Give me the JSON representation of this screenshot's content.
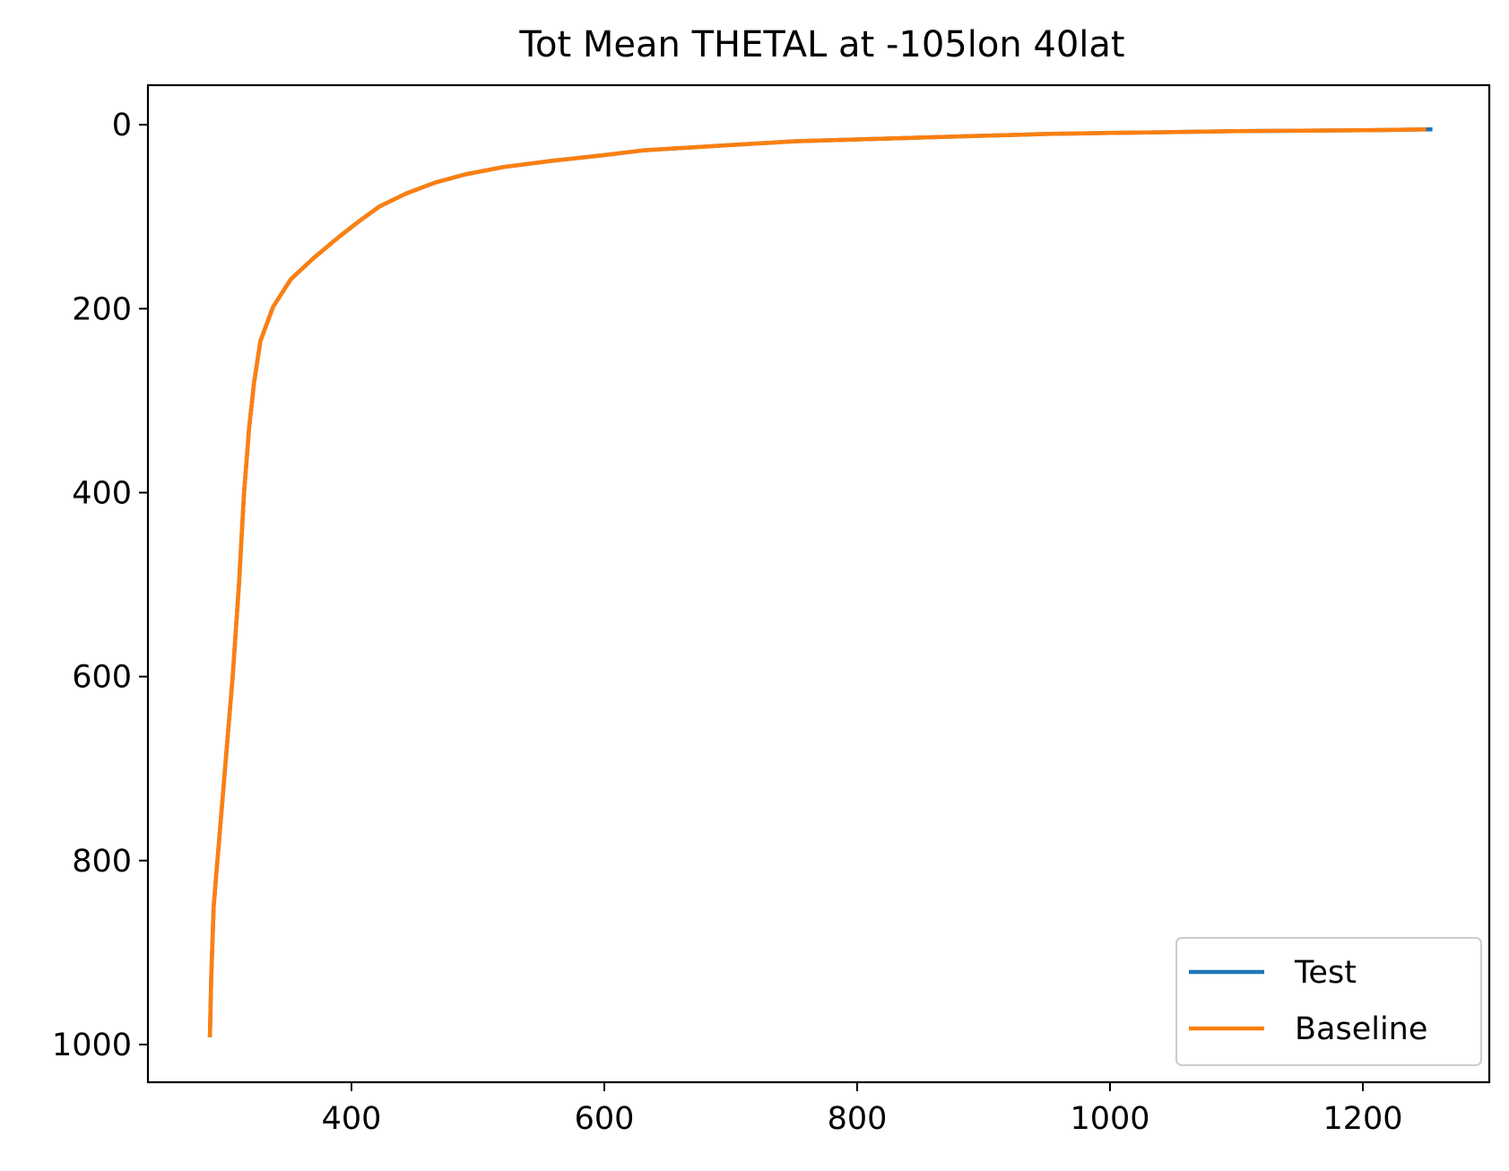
{
  "chart_data": {
    "type": "line",
    "title": "Tot Mean THETAL at -105lon 40lat",
    "xlabel": "",
    "ylabel": "",
    "xlim": [
      239,
      1300
    ],
    "ylim": [
      1041,
      -43
    ],
    "y_inverted": true,
    "x_ticks": [
      400,
      600,
      800,
      1000,
      1200
    ],
    "y_ticks": [
      0,
      200,
      400,
      600,
      800,
      1000
    ],
    "grid": false,
    "legend": {
      "placement": "lower-right",
      "entries": [
        "Test",
        "Baseline"
      ]
    },
    "series": [
      {
        "name": "Test",
        "color": "#1f77b4",
        "points": [
          [
            288,
            992
          ],
          [
            289,
            930
          ],
          [
            291,
            850
          ],
          [
            294,
            800
          ],
          [
            300,
            700
          ],
          [
            306,
            600
          ],
          [
            311,
            500
          ],
          [
            315,
            400
          ],
          [
            319,
            330
          ],
          [
            323,
            280
          ],
          [
            328,
            235
          ],
          [
            338,
            198
          ],
          [
            352,
            168
          ],
          [
            370,
            145
          ],
          [
            390,
            122
          ],
          [
            405,
            106
          ],
          [
            422,
            89
          ],
          [
            443,
            75
          ],
          [
            466,
            63
          ],
          [
            490,
            54
          ],
          [
            520,
            46
          ],
          [
            560,
            39
          ],
          [
            600,
            33
          ],
          [
            630,
            28
          ],
          [
            700,
            22
          ],
          [
            750,
            18
          ],
          [
            800,
            16
          ],
          [
            900,
            12
          ],
          [
            950,
            10
          ],
          [
            1000,
            9
          ],
          [
            1100,
            7
          ],
          [
            1200,
            6
          ],
          [
            1255,
            5
          ]
        ]
      },
      {
        "name": "Baseline",
        "color": "#ff7f0e",
        "points": [
          [
            288,
            992
          ],
          [
            289,
            930
          ],
          [
            291,
            850
          ],
          [
            294,
            800
          ],
          [
            300,
            700
          ],
          [
            306,
            600
          ],
          [
            311,
            500
          ],
          [
            315,
            400
          ],
          [
            319,
            330
          ],
          [
            323,
            280
          ],
          [
            328,
            235
          ],
          [
            338,
            198
          ],
          [
            352,
            168
          ],
          [
            370,
            145
          ],
          [
            390,
            122
          ],
          [
            405,
            106
          ],
          [
            422,
            89
          ],
          [
            443,
            75
          ],
          [
            466,
            63
          ],
          [
            490,
            54
          ],
          [
            520,
            46
          ],
          [
            560,
            39
          ],
          [
            600,
            33
          ],
          [
            630,
            28
          ],
          [
            700,
            22
          ],
          [
            750,
            18
          ],
          [
            800,
            16
          ],
          [
            900,
            12
          ],
          [
            950,
            10
          ],
          [
            1000,
            9
          ],
          [
            1100,
            7
          ],
          [
            1200,
            6
          ],
          [
            1250,
            5
          ]
        ]
      }
    ]
  }
}
